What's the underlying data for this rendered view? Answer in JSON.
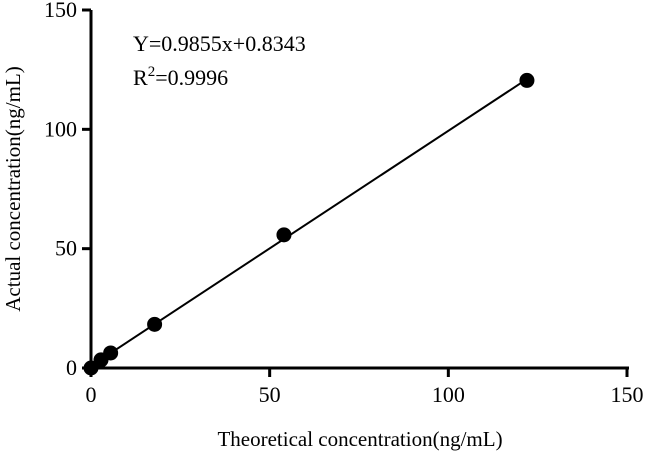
{
  "chart_data": {
    "type": "scatter",
    "xlabel": "Theoretical concentration(ng/mL)",
    "ylabel": "Actual concentration(ng/mL)",
    "xlim": [
      0,
      150
    ],
    "ylim": [
      0,
      150
    ],
    "x_ticks": [
      "0",
      "50",
      "100",
      "150"
    ],
    "y_ticks": [
      "0",
      "50",
      "100",
      "150"
    ],
    "grid": false,
    "points": [
      {
        "x": 0,
        "y": 0
      },
      {
        "x": 2.8,
        "y": 3.4
      },
      {
        "x": 5.5,
        "y": 6.3
      },
      {
        "x": 17.8,
        "y": 18.3
      },
      {
        "x": 54.0,
        "y": 55.8
      },
      {
        "x": 122.0,
        "y": 120.5
      }
    ],
    "fit_line": {
      "slope": 0.9855,
      "intercept": 0.8343,
      "x_range": [
        0,
        122
      ]
    },
    "annotations": {
      "equation": "Y=0.9855x+0.8343",
      "r_squared_prefix": "R",
      "r_squared_sup": "2",
      "r_squared_value": "=0.9996"
    }
  }
}
